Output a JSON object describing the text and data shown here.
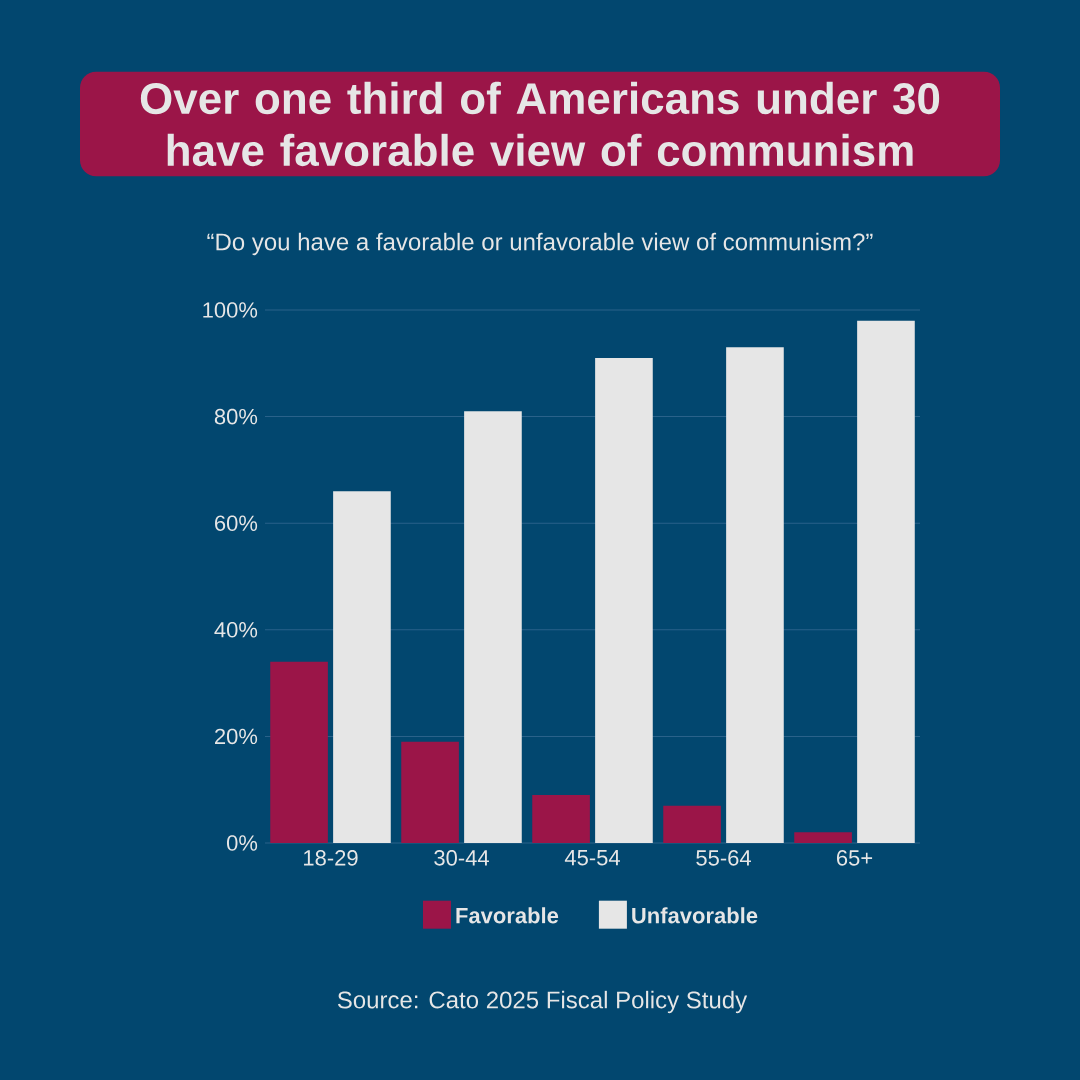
{
  "chart_data": {
    "type": "bar",
    "title": "Over one third of Americans under 30 have favorable view of communism",
    "subtitle": "“Do you have a favorable or unfavorable view of communism?”",
    "categories": [
      "18-29",
      "30-44",
      "45-54",
      "55-64",
      "65+"
    ],
    "series": [
      {
        "name": "Favorable",
        "color": "#9b1548",
        "values": [
          34,
          19,
          9,
          7,
          2
        ]
      },
      {
        "name": "Unfavorable",
        "color": "#e6e6e6",
        "values": [
          66,
          81,
          91,
          93,
          98
        ]
      }
    ],
    "ylim": [
      0,
      100
    ],
    "yticks": [
      {
        "value": 0,
        "label": "0%"
      },
      {
        "value": 20,
        "label": "20%"
      },
      {
        "value": 40,
        "label": "40%"
      },
      {
        "value": 60,
        "label": "60%"
      },
      {
        "value": 80,
        "label": "80%"
      },
      {
        "value": 100,
        "label": "100%"
      }
    ],
    "grid": "y",
    "legend": "bottom",
    "annotations": [
      "Source: Cato 2025 Fiscal Policy Study"
    ]
  }
}
